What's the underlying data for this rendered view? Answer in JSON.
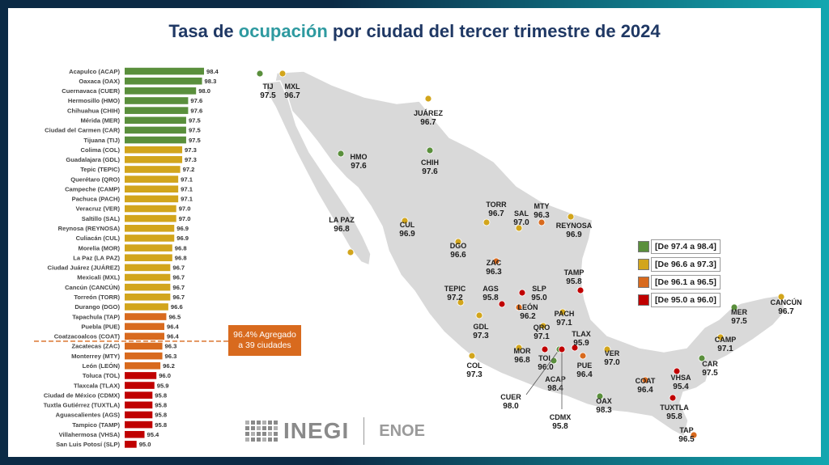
{
  "title": {
    "pre": "Tasa de ",
    "accent": "ocupación",
    "post": " por ciudad del tercer trimestre de 2024"
  },
  "colors": {
    "green": "#5a8f3c",
    "yellow": "#d2a51c",
    "orange": "#d86a1e",
    "red": "#c00000",
    "accent": "#2e9aa0",
    "title": "#1f3864"
  },
  "average_box": {
    "line1": "96.4% Agregado",
    "line2": "a 39 ciudades"
  },
  "chart_data": {
    "type": "bar",
    "orientation": "horizontal",
    "categories": [
      "Acapulco (ACAP)",
      "Oaxaca (OAX)",
      "Cuernavaca (CUER)",
      "Hermosillo (HMO)",
      "Chihuahua (CHIH)",
      "Mérida (MER)",
      "Ciudad del Carmen (CAR)",
      "Tijuana (TIJ)",
      "Colima (COL)",
      "Guadalajara (GDL)",
      "Tepic (TEPIC)",
      "Querétaro (QRO)",
      "Campeche (CAMP)",
      "Pachuca (PACH)",
      "Veracruz (VER)",
      "Saltillo (SAL)",
      "Reynosa (REYNOSA)",
      "Culiacán (CUL)",
      "Morelia (MOR)",
      "La Paz (LA PAZ)",
      "Ciudad Juárez (JUÁREZ)",
      "Mexicali (MXL)",
      "Cancún (CANCÚN)",
      "Torreón (TORR)",
      "Durango (DGO)",
      "Tapachula (TAP)",
      "Puebla (PUE)",
      "Coatzacoalcos (COAT)",
      "Zacatecas (ZAC)",
      "Monterrey (MTY)",
      "León (LEÓN)",
      "Toluca (TOL)",
      "Tlaxcala (TLAX)",
      "Ciudad de México (CDMX)",
      "Tuxtla Gutiérrez (TUXTLA)",
      "Aguascalientes (AGS)",
      "Tampico (TAMP)",
      "Villahermosa (VHSA)",
      "San Luis Potosí (SLP)"
    ],
    "values": [
      98.4,
      98.3,
      98.0,
      97.6,
      97.6,
      97.5,
      97.5,
      97.5,
      97.3,
      97.3,
      97.2,
      97.1,
      97.1,
      97.1,
      97.0,
      97.0,
      96.9,
      96.9,
      96.8,
      96.8,
      96.7,
      96.7,
      96.7,
      96.7,
      96.6,
      96.5,
      96.4,
      96.4,
      96.3,
      96.3,
      96.2,
      96.0,
      95.9,
      95.8,
      95.8,
      95.8,
      95.8,
      95.4,
      95.0
    ],
    "value_labels": [
      "98.4",
      "98.3",
      "98.0",
      "97.6",
      "97.6",
      "97.5",
      "97.5",
      "97.5",
      "97.3",
      "97.3",
      "97.2",
      "97.1",
      "97.1",
      "97.1",
      "97.0",
      "97.0",
      "96.9",
      "96.9",
      "96.8",
      "96.8",
      "96.7",
      "96.7",
      "96.7",
      "96.7",
      "96.6",
      "96.5",
      "96.4",
      "96.4",
      "96.3",
      "96.3",
      "96.2",
      "96.0",
      "95.9",
      "95.8",
      "95.8",
      "95.8",
      "95.8",
      "95.4",
      "95.0"
    ],
    "bar_colors": [
      "green",
      "green",
      "green",
      "green",
      "green",
      "green",
      "green",
      "green",
      "yellow",
      "yellow",
      "yellow",
      "yellow",
      "yellow",
      "yellow",
      "yellow",
      "yellow",
      "yellow",
      "yellow",
      "yellow",
      "yellow",
      "yellow",
      "yellow",
      "yellow",
      "yellow",
      "yellow",
      "orange",
      "orange",
      "orange",
      "orange",
      "orange",
      "orange",
      "red",
      "red",
      "red",
      "red",
      "red",
      "red",
      "red",
      "red"
    ],
    "reference_line": {
      "value": 96.4
    },
    "xlim": [
      94.4,
      98.4
    ]
  },
  "legend": [
    {
      "label": "[De 97.4 a 98.4]",
      "color": "green"
    },
    {
      "label": "[De 96.6 a 97.3]",
      "color": "yellow"
    },
    {
      "label": "[De 96.1 a 96.5]",
      "color": "orange"
    },
    {
      "label": "[De 95.0 a 96.0]",
      "color": "red"
    }
  ],
  "map_cities": [
    {
      "code": "TIJ",
      "value": "97.5",
      "color": "green"
    },
    {
      "code": "MXL",
      "value": "96.7",
      "color": "yellow"
    },
    {
      "code": "JUÁREZ",
      "value": "96.7",
      "color": "yellow"
    },
    {
      "code": "HMO",
      "value": "97.6",
      "color": "green"
    },
    {
      "code": "CHIH",
      "value": "97.6",
      "color": "green"
    },
    {
      "code": "TORR",
      "value": "96.7",
      "color": "yellow"
    },
    {
      "code": "MTY",
      "value": "96.3",
      "color": "orange"
    },
    {
      "code": "SAL",
      "value": "97.0",
      "color": "yellow"
    },
    {
      "code": "REYNOSA",
      "value": "96.9",
      "color": "yellow"
    },
    {
      "code": "LA PAZ",
      "value": "96.8",
      "color": "yellow"
    },
    {
      "code": "CUL",
      "value": "96.9",
      "color": "yellow"
    },
    {
      "code": "DGO",
      "value": "96.6",
      "color": "yellow"
    },
    {
      "code": "ZAC",
      "value": "96.3",
      "color": "orange"
    },
    {
      "code": "TAMP",
      "value": "95.8",
      "color": "red"
    },
    {
      "code": "TEPIC",
      "value": "97.2",
      "color": "yellow"
    },
    {
      "code": "AGS",
      "value": "95.8",
      "color": "red"
    },
    {
      "code": "SLP",
      "value": "95.0",
      "color": "red"
    },
    {
      "code": "LEÓN",
      "value": "96.2",
      "color": "orange"
    },
    {
      "code": "GDL",
      "value": "97.3",
      "color": "yellow"
    },
    {
      "code": "QRO",
      "value": "97.1",
      "color": "yellow"
    },
    {
      "code": "PACH",
      "value": "97.1",
      "color": "yellow"
    },
    {
      "code": "TLAX",
      "value": "95.9",
      "color": "red"
    },
    {
      "code": "MOR",
      "value": "96.8",
      "color": "yellow"
    },
    {
      "code": "TOL",
      "value": "96.0",
      "color": "red"
    },
    {
      "code": "PUE",
      "value": "96.4",
      "color": "orange"
    },
    {
      "code": "VER",
      "value": "97.0",
      "color": "yellow"
    },
    {
      "code": "COL",
      "value": "97.3",
      "color": "yellow"
    },
    {
      "code": "ACAP",
      "value": "98.4",
      "color": "green"
    },
    {
      "code": "CUER",
      "value": "98.0",
      "color": "green"
    },
    {
      "code": "CDMX",
      "value": "95.8",
      "color": "red"
    },
    {
      "code": "OAX",
      "value": "98.3",
      "color": "green"
    },
    {
      "code": "COAT",
      "value": "96.4",
      "color": "orange"
    },
    {
      "code": "VHSA",
      "value": "95.4",
      "color": "red"
    },
    {
      "code": "TUXTLA",
      "value": "95.8",
      "color": "red"
    },
    {
      "code": "TAP",
      "value": "96.5",
      "color": "orange"
    },
    {
      "code": "MER",
      "value": "97.5",
      "color": "green"
    },
    {
      "code": "CANCÚN",
      "value": "96.7",
      "color": "yellow"
    },
    {
      "code": "CAMP",
      "value": "97.1",
      "color": "yellow"
    },
    {
      "code": "CAR",
      "value": "97.5",
      "color": "green"
    }
  ],
  "footer": {
    "brand": "INEGI",
    "survey": "ENOE"
  }
}
